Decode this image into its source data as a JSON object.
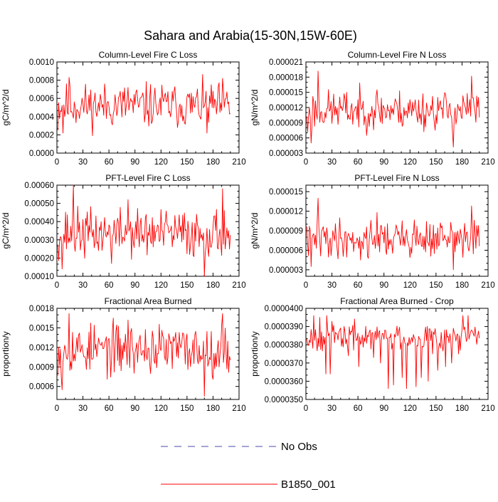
{
  "figure": {
    "title": "Sahara and Arabia(15-30N,15W-60E)"
  },
  "colors": {
    "model": "#ff0000",
    "obs": "#4a4aa8",
    "axis": "#000000"
  },
  "legend": {
    "placement": "bottom-center",
    "entries": [
      {
        "label": "No Obs",
        "style": "dashed",
        "color": "#4a4aa8"
      },
      {
        "label": "B1850_001",
        "style": "solid",
        "color": "#ff0000"
      }
    ]
  },
  "chart_data": [
    {
      "type": "line",
      "title": "Column-Level Fire C Loss",
      "ylabel": "gC/m^2/d",
      "xlim": [
        0,
        210
      ],
      "xticks": [
        "0",
        "30",
        "60",
        "90",
        "120",
        "150",
        "180",
        "210"
      ],
      "ylim": [
        0.0,
        0.001
      ],
      "yticks": [
        "0.0000",
        "0.0002",
        "0.0004",
        "0.0006",
        "0.0008",
        "0.0010"
      ],
      "series": [
        {
          "name": "B1850_001",
          "seed": 11,
          "mean": 0.00052,
          "amp": 0.0001,
          "peaks": [
            [
              13,
              0.00083
            ],
            [
              81,
              0.00072
            ],
            [
              190,
              0.00082
            ]
          ],
          "dips": [
            [
              0,
              0.00025
            ],
            [
              6,
              0.00022
            ],
            [
              172,
              0.00022
            ]
          ]
        }
      ]
    },
    {
      "type": "line",
      "title": "Column-Level Fire N Loss",
      "ylabel": "gN/m^2/d",
      "xlim": [
        0,
        210
      ],
      "xticks": [
        "0",
        "30",
        "60",
        "90",
        "120",
        "150",
        "180",
        "210"
      ],
      "ylim": [
        3e-06,
        2.1e-05
      ],
      "yticks": [
        "0.000003",
        "0.000006",
        "0.000009",
        "0.000012",
        "0.000015",
        "0.000018",
        "0.000021"
      ],
      "series": [
        {
          "name": "B1850_001",
          "seed": 23,
          "mean": 1.15e-05,
          "amp": 1.6e-06,
          "peaks": [
            [
              13,
              1.92e-05
            ],
            [
              81,
              1.55e-05
            ],
            [
              190,
              1.82e-05
            ]
          ],
          "dips": [
            [
              5,
              5e-06
            ],
            [
              169,
              4.2e-06
            ],
            [
              1,
              7.2e-06
            ]
          ]
        }
      ]
    },
    {
      "type": "line",
      "title": "PFT-Level Fire C Loss",
      "ylabel": "gC/m^2/d",
      "xlim": [
        0,
        210
      ],
      "xticks": [
        "0",
        "30",
        "60",
        "90",
        "120",
        "150",
        "180",
        "210"
      ],
      "ylim": [
        0.0001,
        0.0006
      ],
      "yticks": [
        "0.00010",
        "0.00020",
        "0.00030",
        "0.00040",
        "0.00050",
        "0.00060"
      ],
      "series": [
        {
          "name": "B1850_001",
          "seed": 37,
          "mean": 0.000335,
          "amp": 5.5e-05,
          "peaks": [
            [
              18,
              0.0006
            ],
            [
              81,
              0.00052
            ],
            [
              190,
              0.00058
            ]
          ],
          "dips": [
            [
              5,
              0.00014
            ],
            [
              169,
              0.0001
            ],
            [
              62,
              0.00017
            ]
          ]
        }
      ]
    },
    {
      "type": "line",
      "title": "PFT-Level Fire N Loss",
      "ylabel": "gN/m^2/d",
      "xlim": [
        0,
        210
      ],
      "xticks": [
        "0",
        "30",
        "60",
        "90",
        "120",
        "150",
        "180",
        "210"
      ],
      "ylim": [
        2e-06,
        1.6e-05
      ],
      "yticks": [
        "0.000003",
        "0.000006",
        "0.000009",
        "0.000012",
        "0.000015"
      ],
      "series": [
        {
          "name": "B1850_001",
          "seed": 41,
          "mean": 7.8e-06,
          "amp": 1.2e-06,
          "peaks": [
            [
              13,
              1.4e-05
            ],
            [
              81,
              1.18e-05
            ],
            [
              190,
              1.28e-05
            ]
          ],
          "dips": [
            [
              5,
              3.5e-06
            ],
            [
              169,
              3e-06
            ],
            [
              62,
              4.5e-06
            ]
          ]
        }
      ]
    },
    {
      "type": "line",
      "title": "Fractional Area Burned",
      "ylabel": "proportion/y",
      "xlim": [
        0,
        210
      ],
      "xticks": [
        "0",
        "30",
        "60",
        "90",
        "120",
        "150",
        "180",
        "210"
      ],
      "ylim": [
        0.0004,
        0.0018
      ],
      "yticks": [
        "0.0006",
        "0.0009",
        "0.0012",
        "0.0015",
        "0.0018"
      ],
      "series": [
        {
          "name": "B1850_001",
          "seed": 53,
          "mean": 0.00117,
          "amp": 0.00016,
          "peaks": [
            [
              13,
              0.00172
            ],
            [
              81,
              0.00162
            ],
            [
              190,
              0.00172
            ]
          ],
          "dips": [
            [
              5,
              0.00055
            ],
            [
              169,
              0.00045
            ],
            [
              4,
              0.00075
            ]
          ]
        }
      ]
    },
    {
      "type": "line",
      "title": "Fractional Area Burned - Crop",
      "ylabel": "proportion/y",
      "xlim": [
        0,
        210
      ],
      "xticks": [
        "0",
        "30",
        "60",
        "90",
        "120",
        "150",
        "180",
        "210"
      ],
      "ylim": [
        3.5e-05,
        4e-05
      ],
      "yticks": [
        "0.0000350",
        "0.0000360",
        "0.0000370",
        "0.0000380",
        "0.0000390",
        "0.0000400"
      ],
      "series": [
        {
          "name": "B1850_001",
          "seed": 67,
          "mean": 3.845e-05,
          "amp": 3e-07,
          "peaks": [
            [
              8,
              3.96e-05
            ],
            [
              15,
              3.95e-05
            ],
            [
              23,
              3.96e-05
            ],
            [
              180,
              3.96e-05
            ],
            [
              186,
              3.96e-05
            ]
          ],
          "dips": [
            [
              22,
              3.64e-05
            ],
            [
              27,
              3.64e-05
            ],
            [
              94,
              3.56e-05
            ],
            [
              100,
              3.58e-05
            ],
            [
              115,
              3.56e-05
            ],
            [
              126,
              3.57e-05
            ],
            [
              132,
              3.62e-05
            ],
            [
              140,
              3.6e-05
            ],
            [
              151,
              3.66e-05
            ],
            [
              167,
              3.7e-05
            ],
            [
              48,
              3.74e-05
            ],
            [
              60,
              3.68e-05
            ],
            [
              77,
              3.73e-05
            ],
            [
              85,
              3.7e-05
            ],
            [
              110,
              3.62e-05
            ],
            [
              145,
              3.75e-05
            ],
            [
              160,
              3.68e-05
            ],
            [
              175,
              3.75e-05
            ]
          ]
        }
      ]
    }
  ]
}
